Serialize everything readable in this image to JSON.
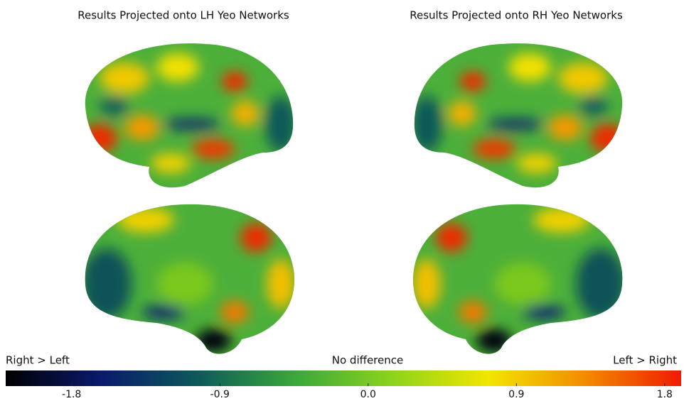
{
  "titles": [
    "Results Projected onto LH Yeo Networks",
    "Results Projected onto RH Yeo Networks"
  ],
  "colorbar": {
    "left_label": "Right > Left",
    "center_label": "No difference",
    "right_label": "Left > Right",
    "lim": [
      -2.2,
      1.9
    ],
    "ticks": [
      -1.8,
      -0.9,
      {
        "value": 0,
        "label": "0.0"
      },
      0.9,
      1.8
    ],
    "colors": [
      "#000000",
      "#0a1a6e",
      "#0c5a5a",
      "#3aa83a",
      "#8cd21e",
      "#f2e600",
      "#f28c00",
      "#ee1c00"
    ]
  }
}
